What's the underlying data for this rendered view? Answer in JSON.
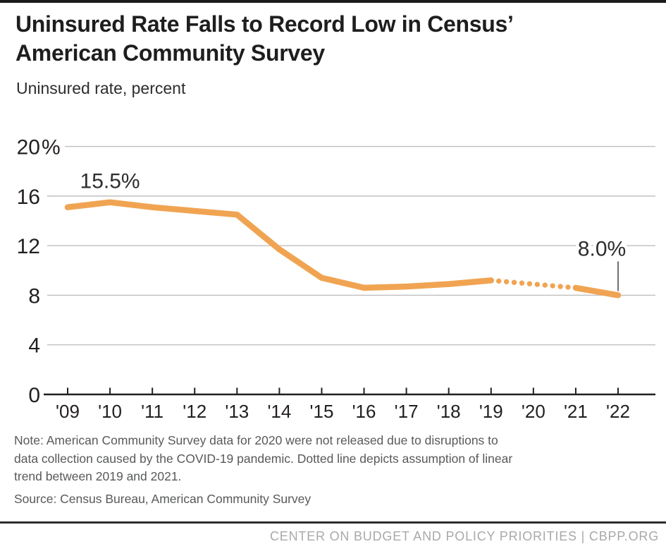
{
  "header": {
    "title": "Uninsured Rate Falls to Record Low in Census’\nAmerican Community Survey",
    "subtitle": "Uninsured rate, percent"
  },
  "footer": {
    "note": "Note: American Community Survey data for 2020 were not released due to disruptions to\ndata collection caused by the COVID-19 pandemic. Dotted line depicts assumption of linear\ntrend between 2019 and 2021.",
    "source": "Source: Census Bureau, American Community Survey",
    "credit": "CENTER ON BUDGET AND POLICY PRIORITIES | CBPP.ORG"
  },
  "colors": {
    "line_orange": "#F0A452",
    "axis_black": "#231f20",
    "gridline_gray": "#bfbfbf",
    "annotation_text": "#2d2d2d",
    "pointer_gray": "#4d4d4f",
    "note_gray": "#58595b",
    "credit_gray": "#a7a9ac",
    "top_bar": "#1a1a1a"
  },
  "chart_data": {
    "type": "line",
    "title": "Uninsured Rate Falls to Record Low in Census’ American Community Survey",
    "ylabel": "Uninsured rate, percent",
    "xlabel": "",
    "categories": [
      "'09",
      "'10",
      "'11",
      "'12",
      "'13",
      "'14",
      "'15",
      "'16",
      "'17",
      "'18",
      "'19",
      "'20",
      "'21",
      "'22"
    ],
    "series": [
      {
        "name": "Uninsured rate, percent",
        "values": [
          15.1,
          15.5,
          15.1,
          14.8,
          14.5,
          11.7,
          9.4,
          8.6,
          8.7,
          8.9,
          9.2,
          null,
          8.6,
          8.0
        ]
      }
    ],
    "dotted_segment": {
      "from_category": "'19",
      "to_category": "'21",
      "interpolated_2020_value": 8.9,
      "meaning": "assumption of linear trend between 2019 and 2021; 2020 data not released"
    },
    "annotations": [
      {
        "category": "'10",
        "value": 15.5,
        "label": "15.5%"
      },
      {
        "category": "'22",
        "value": 8.0,
        "label": "8.0%",
        "pointer_line": true
      }
    ],
    "yticks": [
      {
        "label": "0",
        "value": 0
      },
      {
        "label": "4",
        "value": 4
      },
      {
        "label": "8",
        "value": 8
      },
      {
        "label": "12",
        "value": 12
      },
      {
        "label": "16",
        "value": 16
      },
      {
        "label": "20%",
        "value": 20
      }
    ],
    "ylim": [
      0,
      20
    ],
    "grid": "horizontal",
    "legend": "none"
  }
}
